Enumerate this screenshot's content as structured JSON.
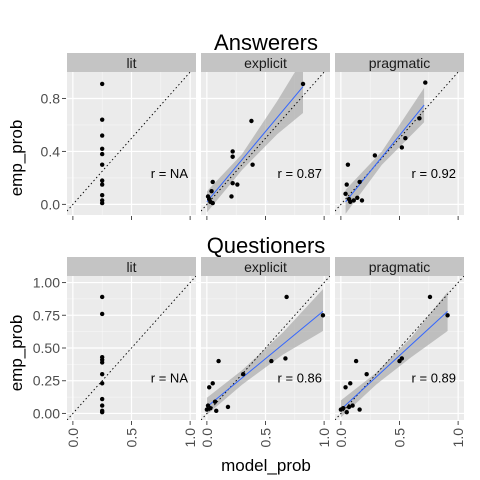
{
  "chart_data": [
    {
      "type": "scatter",
      "title": "Answerers",
      "xlabel": "model_prob",
      "ylabel": "emp_prob",
      "xlim": [
        -0.05,
        1.05
      ],
      "ylim": [
        -0.08,
        1.0
      ],
      "xticks": [
        "0.0",
        "0.5",
        "1.0"
      ],
      "xticks_shown": false,
      "yticks": [
        "0.0",
        "0.4",
        "0.8"
      ],
      "ytick_values": [
        0.0,
        0.4,
        0.8
      ],
      "grid": true,
      "reference_line": "y = x (dotted)",
      "panels": [
        {
          "label": "lit",
          "r_label": "r = NA",
          "fit": null,
          "points": [
            {
              "x": 0.25,
              "y": 0.91
            },
            {
              "x": 0.25,
              "y": 0.64
            },
            {
              "x": 0.25,
              "y": 0.52
            },
            {
              "x": 0.25,
              "y": 0.42
            },
            {
              "x": 0.25,
              "y": 0.38
            },
            {
              "x": 0.25,
              "y": 0.3
            },
            {
              "x": 0.25,
              "y": 0.18
            },
            {
              "x": 0.25,
              "y": 0.15
            },
            {
              "x": 0.25,
              "y": 0.07
            },
            {
              "x": 0.25,
              "y": 0.03
            },
            {
              "x": 0.25,
              "y": 0.01
            }
          ]
        },
        {
          "label": "explicit",
          "r_label": "r = 0.87",
          "fit": {
            "x0": 0.0,
            "y0": 0.02,
            "x1": 0.82,
            "y1": 0.89
          },
          "band": [
            {
              "x": 0.0,
              "lo": -0.06,
              "hi": 0.1
            },
            {
              "x": 0.3,
              "lo": 0.26,
              "hi": 0.38
            },
            {
              "x": 0.6,
              "lo": 0.53,
              "hi": 0.78
            },
            {
              "x": 0.82,
              "lo": 0.69,
              "hi": 1.1
            }
          ],
          "points": [
            {
              "x": 0.01,
              "y": 0.06
            },
            {
              "x": 0.02,
              "y": 0.04
            },
            {
              "x": 0.03,
              "y": 0.02
            },
            {
              "x": 0.04,
              "y": 0.1
            },
            {
              "x": 0.05,
              "y": 0.17
            },
            {
              "x": 0.05,
              "y": 0.01
            },
            {
              "x": 0.22,
              "y": 0.4
            },
            {
              "x": 0.22,
              "y": 0.36
            },
            {
              "x": 0.22,
              "y": 0.16
            },
            {
              "x": 0.21,
              "y": 0.06
            },
            {
              "x": 0.26,
              "y": 0.15
            },
            {
              "x": 0.38,
              "y": 0.63
            },
            {
              "x": 0.39,
              "y": 0.3
            },
            {
              "x": 0.82,
              "y": 0.91
            }
          ]
        },
        {
          "label": "pragmatic",
          "r_label": "r = 0.92",
          "fit": {
            "x0": 0.04,
            "y0": 0.02,
            "x1": 0.71,
            "y1": 0.75
          },
          "band": [
            {
              "x": 0.04,
              "lo": -0.07,
              "hi": 0.11
            },
            {
              "x": 0.35,
              "lo": 0.3,
              "hi": 0.4
            },
            {
              "x": 0.71,
              "lo": 0.62,
              "hi": 0.88
            }
          ],
          "points": [
            {
              "x": 0.04,
              "y": 0.08
            },
            {
              "x": 0.05,
              "y": 0.15
            },
            {
              "x": 0.06,
              "y": 0.3
            },
            {
              "x": 0.07,
              "y": 0.04
            },
            {
              "x": 0.08,
              "y": 0.02
            },
            {
              "x": 0.11,
              "y": 0.03
            },
            {
              "x": 0.14,
              "y": 0.05
            },
            {
              "x": 0.18,
              "y": 0.03
            },
            {
              "x": 0.16,
              "y": 0.17
            },
            {
              "x": 0.29,
              "y": 0.37
            },
            {
              "x": 0.52,
              "y": 0.43
            },
            {
              "x": 0.55,
              "y": 0.5
            },
            {
              "x": 0.67,
              "y": 0.65
            },
            {
              "x": 0.72,
              "y": 0.92
            }
          ]
        }
      ]
    },
    {
      "type": "scatter",
      "title": "Questioners",
      "xlabel": "model_prob",
      "ylabel": "emp_prob",
      "xlim": [
        -0.05,
        1.05
      ],
      "ylim": [
        -0.05,
        1.05
      ],
      "xticks": [
        "0.0",
        "0.5",
        "1.0"
      ],
      "xticks_shown": true,
      "yticks": [
        "0.00",
        "0.25",
        "0.50",
        "0.75",
        "1.00"
      ],
      "ytick_values": [
        0.0,
        0.25,
        0.5,
        0.75,
        1.0
      ],
      "grid": true,
      "reference_line": "y = x (dotted)",
      "panels": [
        {
          "label": "lit",
          "r_label": "r = NA",
          "fit": null,
          "points": [
            {
              "x": 0.25,
              "y": 0.89
            },
            {
              "x": 0.25,
              "y": 0.76
            },
            {
              "x": 0.25,
              "y": 0.43
            },
            {
              "x": 0.25,
              "y": 0.41
            },
            {
              "x": 0.25,
              "y": 0.39
            },
            {
              "x": 0.25,
              "y": 0.3
            },
            {
              "x": 0.25,
              "y": 0.23
            },
            {
              "x": 0.25,
              "y": 0.11
            },
            {
              "x": 0.25,
              "y": 0.06
            },
            {
              "x": 0.25,
              "y": 0.02
            },
            {
              "x": 0.25,
              "y": 0.01
            }
          ]
        },
        {
          "label": "explicit",
          "r_label": "r = 0.86",
          "fit": {
            "x0": 0.0,
            "y0": 0.05,
            "x1": 0.99,
            "y1": 0.78
          },
          "band": [
            {
              "x": 0.0,
              "lo": -0.01,
              "hi": 0.12
            },
            {
              "x": 0.3,
              "lo": 0.22,
              "hi": 0.33
            },
            {
              "x": 0.65,
              "lo": 0.45,
              "hi": 0.62
            },
            {
              "x": 0.99,
              "lo": 0.63,
              "hi": 0.95
            }
          ],
          "points": [
            {
              "x": 0.0,
              "y": 0.03
            },
            {
              "x": 0.01,
              "y": 0.06
            },
            {
              "x": 0.02,
              "y": 0.2
            },
            {
              "x": 0.03,
              "y": 0.04
            },
            {
              "x": 0.05,
              "y": 0.23
            },
            {
              "x": 0.07,
              "y": 0.09
            },
            {
              "x": 0.08,
              "y": 0.02
            },
            {
              "x": 0.1,
              "y": 0.4
            },
            {
              "x": 0.18,
              "y": 0.05
            },
            {
              "x": 0.31,
              "y": 0.3
            },
            {
              "x": 0.55,
              "y": 0.4
            },
            {
              "x": 0.67,
              "y": 0.42
            },
            {
              "x": 0.68,
              "y": 0.89
            },
            {
              "x": 0.99,
              "y": 0.75
            }
          ]
        },
        {
          "label": "pragmatic",
          "r_label": "r = 0.89",
          "fit": {
            "x0": 0.0,
            "y0": 0.03,
            "x1": 0.91,
            "y1": 0.78
          },
          "band": [
            {
              "x": 0.0,
              "lo": -0.03,
              "hi": 0.1
            },
            {
              "x": 0.3,
              "lo": 0.22,
              "hi": 0.31
            },
            {
              "x": 0.6,
              "lo": 0.43,
              "hi": 0.58
            },
            {
              "x": 0.91,
              "lo": 0.63,
              "hi": 0.93
            }
          ],
          "points": [
            {
              "x": 0.0,
              "y": 0.03
            },
            {
              "x": 0.02,
              "y": 0.04
            },
            {
              "x": 0.04,
              "y": 0.2
            },
            {
              "x": 0.05,
              "y": 0.01
            },
            {
              "x": 0.07,
              "y": 0.05
            },
            {
              "x": 0.08,
              "y": 0.23
            },
            {
              "x": 0.1,
              "y": 0.06
            },
            {
              "x": 0.13,
              "y": 0.4
            },
            {
              "x": 0.16,
              "y": 0.03
            },
            {
              "x": 0.22,
              "y": 0.3
            },
            {
              "x": 0.5,
              "y": 0.4
            },
            {
              "x": 0.52,
              "y": 0.42
            },
            {
              "x": 0.76,
              "y": 0.89
            },
            {
              "x": 0.91,
              "y": 0.75
            }
          ]
        }
      ]
    }
  ],
  "colors": {
    "panel_bg": "#ebebeb",
    "grid": "#ffffff",
    "strip_bg": "#c4c4c4",
    "point": "#000000",
    "fit_line": "#3366ff",
    "band": "#999999",
    "tick_text": "#4d4d4d"
  }
}
